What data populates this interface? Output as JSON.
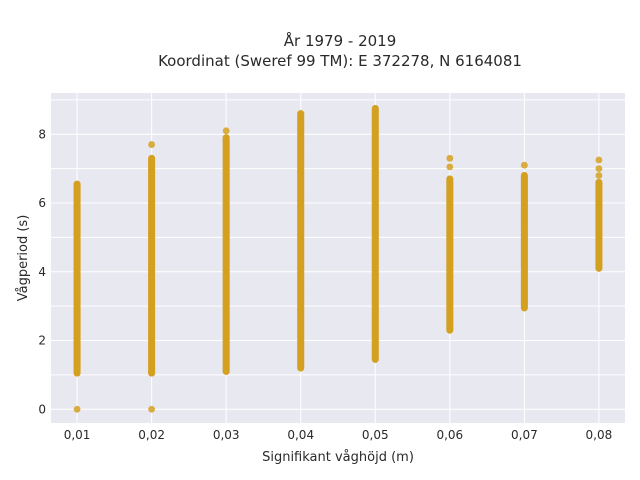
{
  "chart_data": {
    "type": "scatter",
    "title_line1": "År 1979 - 2019",
    "title_line2": "Koordinat (Sweref 99 TM): E 372278, N 6164081",
    "xlabel": "Signifikant våghöjd (m)",
    "ylabel": "Vågperiod (s)",
    "categories": [
      "0,01",
      "0,02",
      "0,03",
      "0,04",
      "0,05",
      "0,06",
      "0,07",
      "0,08"
    ],
    "x": [
      0.01,
      0.02,
      0.03,
      0.04,
      0.05,
      0.06,
      0.07,
      0.08
    ],
    "ylim": [
      -0.4,
      9.2
    ],
    "yticks": [
      0,
      2,
      4,
      6,
      8
    ],
    "grid": true,
    "marker_color": "#d4a020",
    "background_color": "#e8e8f0",
    "ranges": [
      {
        "x": 0.01,
        "min": 1.05,
        "max": 6.55,
        "extra": [
          0
        ]
      },
      {
        "x": 0.02,
        "min": 1.05,
        "max": 7.3,
        "extra": [
          0,
          7.7
        ]
      },
      {
        "x": 0.03,
        "min": 1.1,
        "max": 7.9,
        "extra": [
          8.1
        ]
      },
      {
        "x": 0.04,
        "min": 1.2,
        "max": 8.6,
        "extra": []
      },
      {
        "x": 0.05,
        "min": 1.45,
        "max": 8.75,
        "extra": []
      },
      {
        "x": 0.06,
        "min": 2.3,
        "max": 6.7,
        "extra": [
          7.05,
          7.3
        ]
      },
      {
        "x": 0.07,
        "min": 2.95,
        "max": 6.8,
        "extra": [
          7.1
        ]
      },
      {
        "x": 0.08,
        "min": 4.1,
        "max": 6.6,
        "extra": [
          6.8,
          7.0,
          7.25
        ]
      }
    ]
  }
}
